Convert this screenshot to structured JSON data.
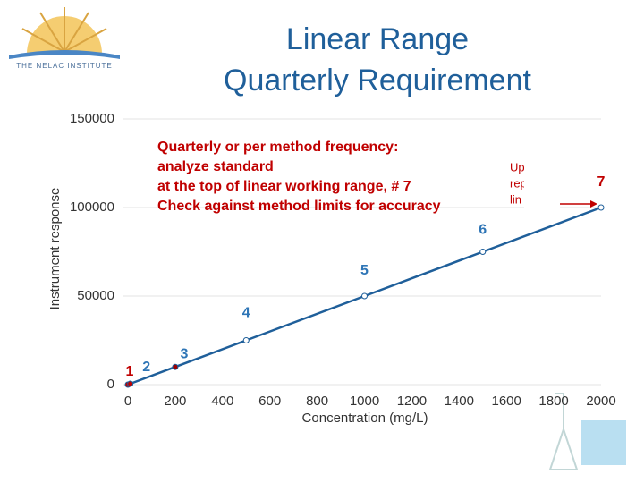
{
  "header": {
    "logo_text": "THE NELAC INSTITUTE"
  },
  "chart_data": {
    "type": "line",
    "title": [
      "Linear Range",
      "Quarterly Requirement"
    ],
    "x_label": "Concentration (mg/L)",
    "y_label": "Instrument response",
    "x": [
      0,
      10,
      200,
      500,
      1000,
      1500,
      2000
    ],
    "series": [
      {
        "color": "#1f5f9a",
        "values": [
          0,
          500,
          10000,
          25000,
          50000,
          75000,
          100000
        ]
      }
    ],
    "point_labels": [
      "1",
      "2",
      "3",
      "4",
      "5",
      "6",
      "7"
    ],
    "label_colors": [
      "#c00000",
      "#2e75b6",
      "#2e75b6",
      "#2e75b6",
      "#2e75b6",
      "#2e75b6",
      "#c00000"
    ],
    "marker_colors": [
      "#c00000",
      "#c00000",
      "#a00000",
      "#ffffff",
      "#ffffff",
      "#ffffff",
      "#ffffff"
    ],
    "xlim": [
      0,
      2000
    ],
    "xticks": [
      0,
      200,
      400,
      600,
      800,
      1000,
      1200,
      1400,
      1600,
      1800,
      2000
    ],
    "ylim": [
      0,
      150000
    ],
    "yticks": [
      0,
      50000,
      100000,
      150000
    ],
    "grid": true,
    "annotations": [
      {
        "lines": [
          "Quarterly or per method frequency:",
          "analyze standard",
          "at the top of linear working range, # 7",
          "Check against method limits for accuracy"
        ],
        "color": "#c00000"
      },
      {
        "lines": [
          "Up",
          "rep",
          "lin"
        ],
        "color": "#c00000"
      }
    ]
  }
}
